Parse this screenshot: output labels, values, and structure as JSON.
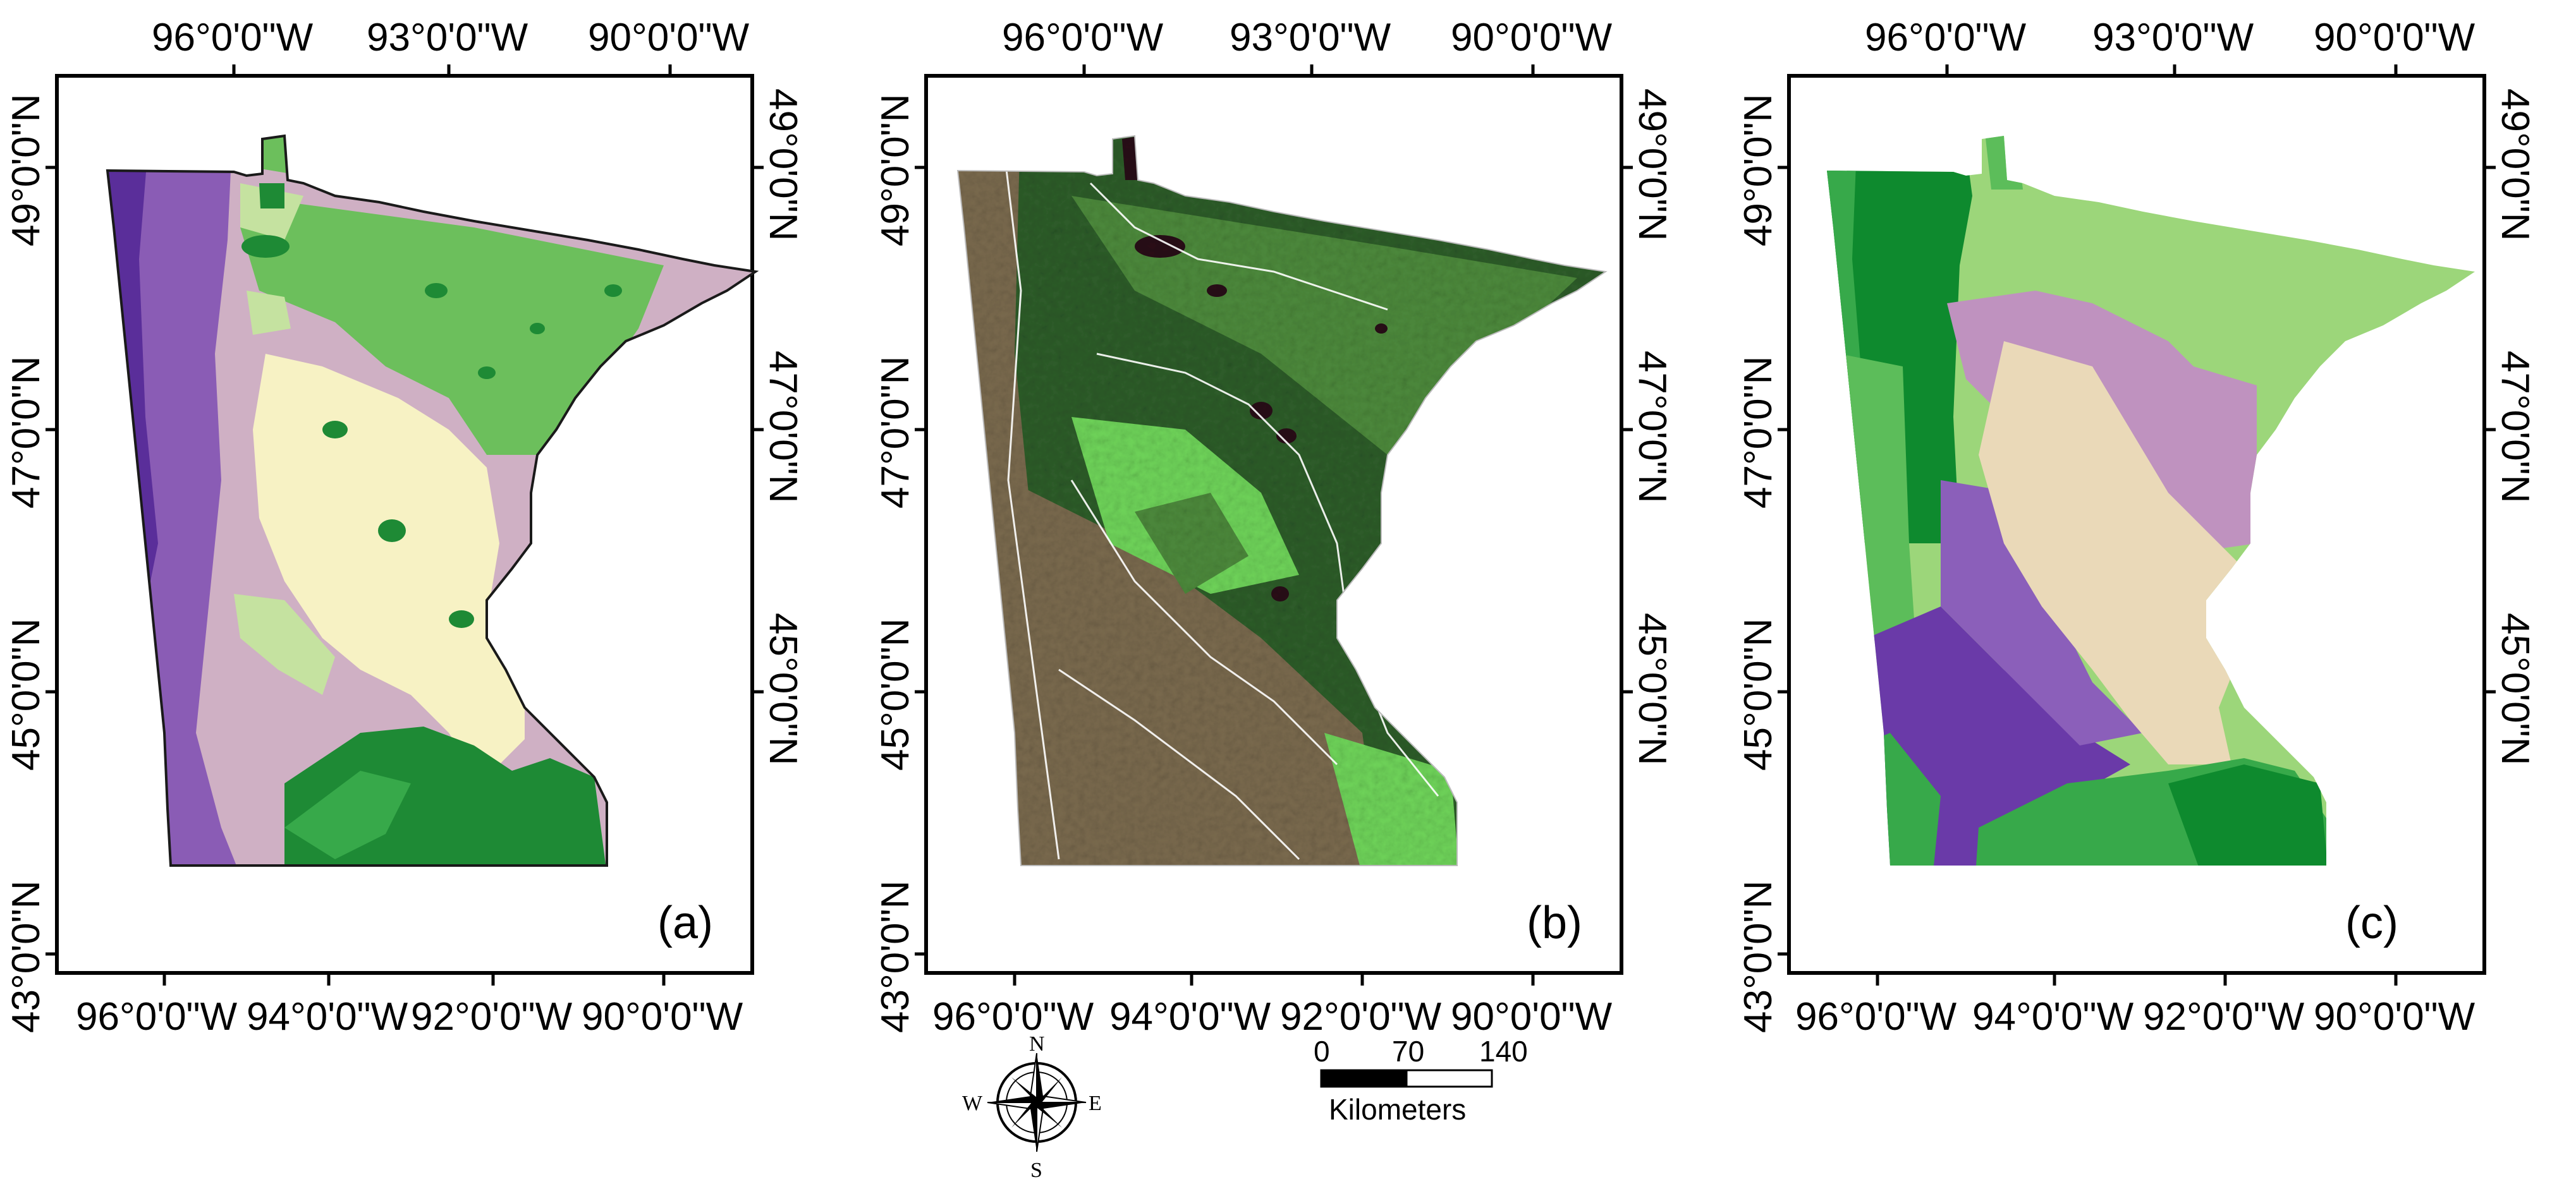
{
  "figure": {
    "panels": [
      {
        "id": "a",
        "label": "(a)",
        "top_ticks": [
          "96°0'0\"W",
          "93°0'0\"W",
          "90°0'0\"W"
        ],
        "bottom_ticks": [
          "96°0'0\"W",
          "94°0'0\"W",
          "92°0'0\"W",
          "90°0'0\"W"
        ],
        "lat_ticks": [
          "49°0'0\"N",
          "47°0'0\"N",
          "45°0'0\"N",
          "43°0'0\"N"
        ]
      },
      {
        "id": "b",
        "label": "(b)",
        "top_ticks": [
          "96°0'0\"W",
          "93°0'0\"W",
          "90°0'0\"W"
        ],
        "bottom_ticks": [
          "96°0'0\"W",
          "94°0'0\"W",
          "92°0'0\"W",
          "90°0'0\"W"
        ],
        "lat_ticks": [
          "49°0'0\"N",
          "47°0'0\"N",
          "45°0'0\"N",
          "43°0'0\"N"
        ]
      },
      {
        "id": "c",
        "label": "(c)",
        "top_ticks": [
          "96°0'0\"W",
          "93°0'0\"W",
          "90°0'0\"W"
        ],
        "bottom_ticks": [
          "96°0'0\"W",
          "94°0'0\"W",
          "92°0'0\"W",
          "90°0'0\"W"
        ],
        "lat_ticks": [
          "49°0'0\"N",
          "47°0'0\"N",
          "45°0'0\"N",
          "43°0'0\"N"
        ]
      }
    ],
    "scale_bar": {
      "ticks": [
        "0",
        "70",
        "140"
      ],
      "unit": "Kilometers"
    },
    "compass": {
      "n": "N",
      "s": "S",
      "e": "E",
      "w": "W"
    },
    "colors": {
      "dark_purple": "#5a2e9a",
      "purple": "#8a5cb5",
      "light_purple": "#b395c5",
      "mauve": "#cfb0c4",
      "cream": "#f7f2c4",
      "light_green": "#c5e2a0",
      "green": "#6cbf5c",
      "dark_green": "#1e8a35",
      "border": "#1a4a1a",
      "satellite_dark": "#2e5d2a",
      "satellite_mid": "#4d8a3c",
      "satellite_brown": "#7a6a4e",
      "satellite_bright": "#6fd45a",
      "water_dark": "#2a0c18",
      "c_dark_green": "#0e8a2e",
      "c_green": "#37a94a",
      "c_light_green": "#9cd67a",
      "c_mid_green": "#5cbd5a",
      "c_purple": "#6a3aa8",
      "c_mid_purple": "#8b5fba",
      "c_mauve": "#bf92bf",
      "c_beige": "#ead9b8"
    }
  }
}
